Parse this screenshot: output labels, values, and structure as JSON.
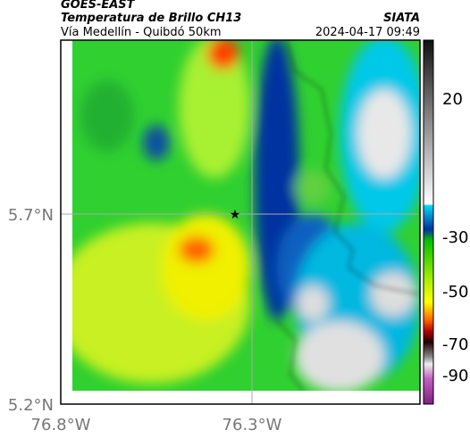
{
  "header": {
    "satellite": "GOES-EAST",
    "product": "Temperatura de Brillo CH13",
    "region": "Vía Medellín - Quibdó 50km",
    "source": "SIATA",
    "timestamp": "2024-04-17 09:49"
  },
  "map": {
    "lat_labels": [
      "5.7°N",
      "5.2°N"
    ],
    "lon_labels": [
      "76.8°W",
      "76.3°W"
    ]
  },
  "colorbar": {
    "ticks": [
      20,
      -30,
      -50,
      -70,
      -90
    ]
  }
}
